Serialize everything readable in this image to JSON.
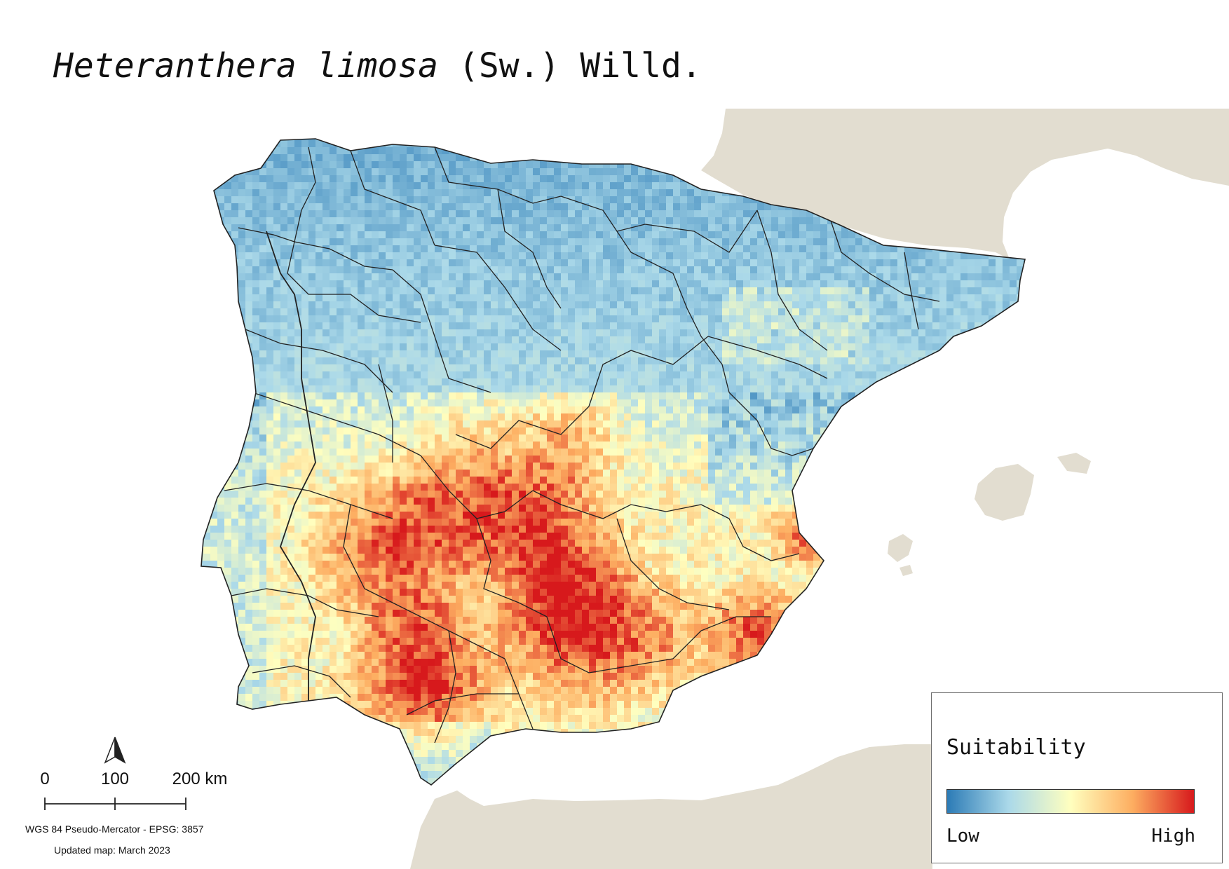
{
  "title": {
    "species": "Heteranthera limosa",
    "authority": "(Sw.) Willd."
  },
  "legend": {
    "title": "Suitability",
    "low_label": "Low",
    "high_label": "High",
    "ramp_colors": [
      "#2c7bb6",
      "#abd9e9",
      "#ffffbf",
      "#fdae61",
      "#d7191c"
    ]
  },
  "scale_bar": {
    "labels": [
      "0",
      "100",
      "200 km"
    ]
  },
  "north_arrow": {
    "icon": "north-arrow-icon"
  },
  "projection_text": "WGS 84 Pseudo-Mercator  - EPSG: 3857",
  "updated_text": "Updated map: March 2023",
  "colors": {
    "land_background": "#e2ddd0",
    "sea": "#ffffff",
    "boundaries": "#222222"
  }
}
